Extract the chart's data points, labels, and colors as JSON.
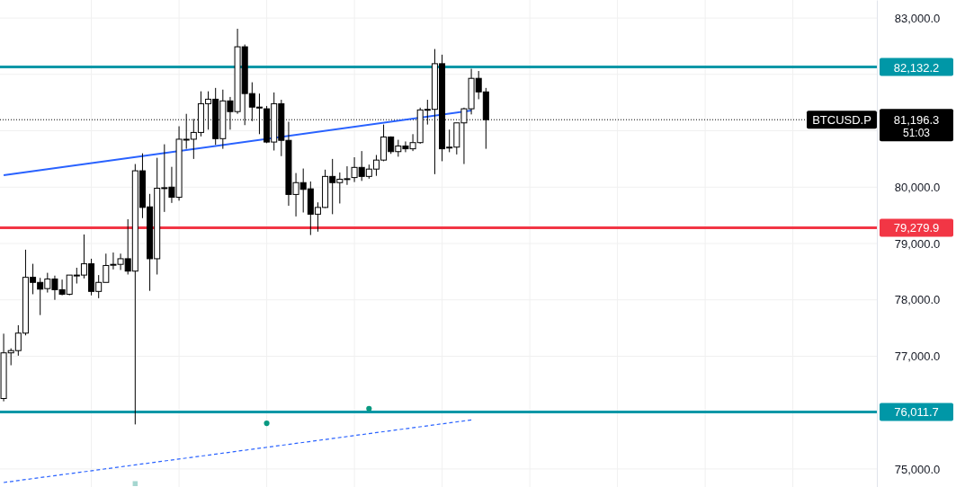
{
  "chart_data": {
    "type": "candlestick",
    "categories": [
      null,
      null,
      null,
      null,
      null,
      null,
      null,
      null,
      null,
      null,
      null,
      null,
      null,
      null,
      null,
      null,
      null,
      null,
      null,
      null,
      null,
      null,
      null,
      null,
      null,
      null,
      null,
      null,
      null,
      null,
      null,
      null,
      null,
      null,
      null,
      null,
      null,
      null,
      null,
      null,
      null,
      null,
      null,
      null,
      null,
      null,
      null,
      null,
      null,
      null,
      null,
      null,
      null,
      null,
      null,
      null,
      null,
      null,
      null,
      null,
      null,
      null,
      null,
      null,
      null,
      null,
      null,
      null,
      null,
      null,
      null,
      null,
      null,
      null,
      null,
      null,
      null,
      null,
      null,
      null,
      null,
      null,
      null,
      null,
      null,
      null,
      null,
      null,
      null,
      null,
      null,
      null,
      null,
      null,
      null,
      null,
      null,
      null,
      null,
      null,
      null,
      null,
      null,
      null,
      null,
      null,
      null,
      null,
      null,
      null,
      null,
      null,
      null,
      null,
      null,
      null,
      null,
      null,
      null,
      null
    ],
    "ohlc": [
      [
        76250,
        77400,
        76200,
        77060
      ],
      [
        77060,
        77140,
        76840,
        77100
      ],
      [
        77100,
        77550,
        77010,
        77410
      ],
      [
        77410,
        78890,
        77370,
        78400
      ],
      [
        78400,
        78640,
        78100,
        78310
      ],
      [
        78310,
        78390,
        77730,
        78190
      ],
      [
        78200,
        78480,
        78130,
        78370
      ],
      [
        78370,
        78430,
        78000,
        78180
      ],
      [
        78180,
        78360,
        78080,
        78100
      ],
      [
        78100,
        78440,
        78080,
        78440
      ],
      [
        78430,
        78570,
        78290,
        78440
      ],
      [
        78440,
        79160,
        78380,
        78640
      ],
      [
        78640,
        78730,
        78080,
        78150
      ],
      [
        78150,
        78440,
        78030,
        78310
      ],
      [
        78310,
        78820,
        78310,
        78610
      ],
      [
        78620,
        78840,
        78540,
        78630
      ],
      [
        78630,
        78820,
        78530,
        78730
      ],
      [
        78730,
        79430,
        78450,
        78510
      ],
      [
        78510,
        80410,
        75790,
        80290
      ],
      [
        80290,
        80600,
        79450,
        79640
      ],
      [
        79650,
        79880,
        78160,
        78730
      ],
      [
        78730,
        80520,
        78450,
        79980
      ],
      [
        79980,
        80760,
        79560,
        79990
      ],
      [
        80000,
        80360,
        79720,
        79820
      ],
      [
        79820,
        81080,
        79760,
        80850
      ],
      [
        80850,
        81300,
        80680,
        80850
      ],
      [
        80850,
        81210,
        80500,
        80970
      ],
      [
        80970,
        81700,
        80900,
        81480
      ],
      [
        81480,
        81700,
        81020,
        81560
      ],
      [
        81560,
        81760,
        80750,
        80860
      ],
      [
        80860,
        81730,
        80680,
        81530
      ],
      [
        81530,
        81600,
        81020,
        81340
      ],
      [
        81340,
        82810,
        81300,
        82490
      ],
      [
        82490,
        82530,
        81100,
        81660
      ],
      [
        81660,
        81860,
        81170,
        81420
      ],
      [
        81420,
        81660,
        80940,
        81410
      ],
      [
        81390,
        81440,
        80780,
        80800
      ],
      [
        80800,
        81680,
        80650,
        81480
      ],
      [
        81480,
        81550,
        80550,
        80830
      ],
      [
        80830,
        81160,
        79670,
        79870
      ],
      [
        79870,
        80250,
        79480,
        80080
      ],
      [
        80080,
        80330,
        79550,
        79960
      ],
      [
        79970,
        80100,
        79150,
        79520
      ],
      [
        79520,
        79730,
        79210,
        79640
      ],
      [
        79640,
        80310,
        79630,
        80190
      ],
      [
        80190,
        80500,
        79520,
        80080
      ],
      [
        80080,
        80260,
        79710,
        80140
      ],
      [
        80140,
        80370,
        80040,
        80150
      ],
      [
        80170,
        80530,
        80090,
        80350
      ],
      [
        80350,
        80640,
        80110,
        80190
      ],
      [
        80190,
        80400,
        80150,
        80320
      ],
      [
        80320,
        80570,
        80200,
        80480
      ],
      [
        80480,
        81110,
        80460,
        80890
      ],
      [
        80890,
        80900,
        80590,
        80630
      ],
      [
        80630,
        80840,
        80540,
        80730
      ],
      [
        80730,
        80810,
        80620,
        80680
      ],
      [
        80680,
        80940,
        80640,
        80790
      ],
      [
        80790,
        81410,
        80770,
        81370
      ],
      [
        81370,
        81550,
        81110,
        81380
      ],
      [
        81380,
        82450,
        80230,
        82190
      ],
      [
        82190,
        82350,
        80460,
        80680
      ],
      [
        80700,
        81020,
        80620,
        80710
      ],
      [
        80710,
        81140,
        80580,
        81140
      ],
      [
        81140,
        81410,
        80410,
        81390
      ],
      [
        81390,
        82100,
        81290,
        81930
      ],
      [
        81930,
        82060,
        81560,
        81690
      ],
      [
        81690,
        81760,
        80680,
        81196.3
      ],
      null,
      null,
      null,
      null,
      null,
      null,
      null,
      null,
      null,
      null,
      null,
      null,
      null,
      null,
      null,
      null,
      null,
      null,
      null,
      null,
      null,
      null,
      null,
      null,
      null,
      null,
      null,
      null,
      null,
      null,
      null,
      null,
      null,
      null,
      null,
      null,
      null,
      null,
      null,
      null,
      null,
      null,
      null,
      null,
      null,
      null,
      null,
      null,
      null,
      null,
      null,
      null,
      null
    ],
    "ylim": [
      74680,
      83320
    ],
    "yticks": [
      {
        "value": 75000,
        "label": "75,000.0"
      },
      {
        "value": 76000,
        "label": null
      },
      {
        "value": 77000,
        "label": "77,000.0"
      },
      {
        "value": 78000,
        "label": "78,000.0"
      },
      {
        "value": 79000,
        "label": "79,000.0"
      },
      {
        "value": 80000,
        "label": "80,000.0"
      },
      {
        "value": 81000,
        "label": null
      },
      {
        "value": 82000,
        "label": null
      },
      {
        "value": 83000,
        "label": "83,000.0"
      }
    ],
    "grid": true,
    "series": [
      {
        "type": "line",
        "values": [
          80210,
          null,
          null,
          null,
          null,
          null,
          null,
          null,
          null,
          null,
          null,
          null,
          null,
          null,
          null,
          null,
          null,
          null,
          null,
          null,
          null,
          null,
          null,
          null,
          null,
          null,
          null,
          null,
          null,
          null,
          null,
          null,
          null,
          null,
          null,
          null,
          null,
          null,
          null,
          null,
          null,
          null,
          null,
          null,
          null,
          null,
          null,
          null,
          null,
          null,
          null,
          null,
          null,
          null,
          null,
          null,
          null,
          null,
          null,
          null,
          null,
          null,
          null,
          null,
          81360,
          null,
          null,
          null,
          null,
          null,
          null,
          null,
          null,
          null,
          null,
          null,
          null,
          null,
          null,
          null,
          null,
          null,
          null,
          null,
          null,
          null,
          null,
          null,
          null,
          null,
          null,
          null,
          null,
          null,
          null,
          null,
          null,
          null,
          null,
          null,
          null,
          null,
          null,
          null,
          null,
          null,
          null,
          null,
          null,
          null,
          null,
          null,
          null,
          null,
          null,
          null,
          null,
          null,
          null,
          null
        ],
        "color": "#2962ff",
        "line_style": "solid"
      },
      {
        "type": "line",
        "values": [
          74760,
          null,
          null,
          null,
          null,
          null,
          null,
          null,
          null,
          null,
          null,
          null,
          null,
          null,
          null,
          null,
          null,
          null,
          null,
          null,
          null,
          null,
          null,
          null,
          null,
          null,
          null,
          null,
          null,
          null,
          null,
          null,
          null,
          null,
          null,
          null,
          null,
          null,
          null,
          null,
          null,
          null,
          null,
          null,
          null,
          null,
          null,
          null,
          null,
          null,
          null,
          null,
          null,
          null,
          null,
          null,
          null,
          null,
          null,
          null,
          null,
          null,
          null,
          null,
          75870,
          null,
          null,
          null,
          null,
          null,
          null,
          null,
          null,
          null,
          null,
          null,
          null,
          null,
          null,
          null,
          null,
          null,
          null,
          null,
          null,
          null,
          null,
          null,
          null,
          null,
          null,
          null,
          null,
          null,
          null,
          null,
          null,
          null,
          null,
          null,
          null,
          null,
          null,
          null,
          null,
          null,
          null,
          null,
          null,
          null,
          null,
          null,
          null,
          null,
          null,
          null,
          null,
          null,
          null,
          null
        ],
        "color": "#2962ff",
        "line_style": "dashed"
      },
      {
        "type": "scatter",
        "values": [
          null,
          null,
          null,
          null,
          null,
          null,
          null,
          null,
          null,
          null,
          null,
          null,
          null,
          null,
          null,
          null,
          null,
          null,
          null,
          null,
          null,
          null,
          null,
          null,
          null,
          null,
          null,
          null,
          null,
          null,
          null,
          null,
          null,
          null,
          null,
          null,
          75810,
          null,
          null,
          null,
          null,
          null,
          null,
          null,
          null,
          null,
          null,
          null,
          null,
          null,
          76070,
          null,
          null,
          null,
          null,
          null,
          null,
          null,
          null,
          null,
          null,
          null,
          null,
          null,
          null,
          null,
          null,
          null,
          null,
          null,
          null,
          null,
          null,
          null,
          null,
          null,
          null,
          null,
          null,
          null,
          null,
          null,
          null,
          null,
          null,
          null,
          null,
          null,
          null,
          null,
          null,
          null,
          null,
          null,
          null,
          null,
          null,
          null,
          null,
          null,
          null,
          null,
          null,
          null,
          null,
          null,
          null,
          null,
          null,
          null,
          null,
          null,
          null,
          null,
          null,
          null,
          null,
          null,
          null,
          null
        ],
        "color": "#089981",
        "marker": "circle"
      },
      {
        "type": "scatter",
        "values": [
          null,
          null,
          null,
          null,
          null,
          null,
          null,
          null,
          null,
          null,
          null,
          null,
          null,
          null,
          null,
          null,
          null,
          null,
          74740,
          null,
          null,
          null,
          null,
          null,
          null,
          null,
          null,
          null,
          null,
          null,
          null,
          null,
          null,
          null,
          null,
          null,
          null,
          null,
          null,
          null,
          null,
          null,
          null,
          null,
          null,
          null,
          null,
          null,
          null,
          null,
          null,
          null,
          null,
          null,
          null,
          null,
          null,
          null,
          null,
          null,
          null,
          null,
          null,
          null,
          null,
          null,
          null,
          null,
          null,
          null,
          null,
          null,
          null,
          null,
          null,
          null,
          null,
          null,
          null,
          null,
          null,
          null,
          null,
          null,
          null,
          null,
          null,
          null,
          null,
          null,
          null,
          null,
          null,
          null,
          null,
          null,
          null,
          null,
          null,
          null,
          null,
          null,
          null,
          null,
          null,
          null,
          null,
          null,
          null,
          null,
          null,
          null,
          null,
          null,
          null,
          null,
          null,
          null,
          null,
          null
        ],
        "color": "#a5d6d0",
        "marker": "square"
      }
    ],
    "ref_lines": [
      {
        "axis": "y",
        "value": 82132.2,
        "label": "82,132.2",
        "color": "#0097a7",
        "line_style": "solid"
      },
      {
        "axis": "y",
        "value": 79279.9,
        "label": "79,279.9",
        "color": "#f23645",
        "line_style": "solid"
      },
      {
        "axis": "y",
        "value": 76011.7,
        "label": "76,011.7",
        "color": "#0097a7",
        "line_style": "solid"
      },
      {
        "axis": "y",
        "value": 81196.3,
        "label": "81,196.3",
        "color": "#000000",
        "line_style": "dotted"
      }
    ],
    "annotations": [
      "BTCUSD.P",
      "51:03"
    ]
  }
}
